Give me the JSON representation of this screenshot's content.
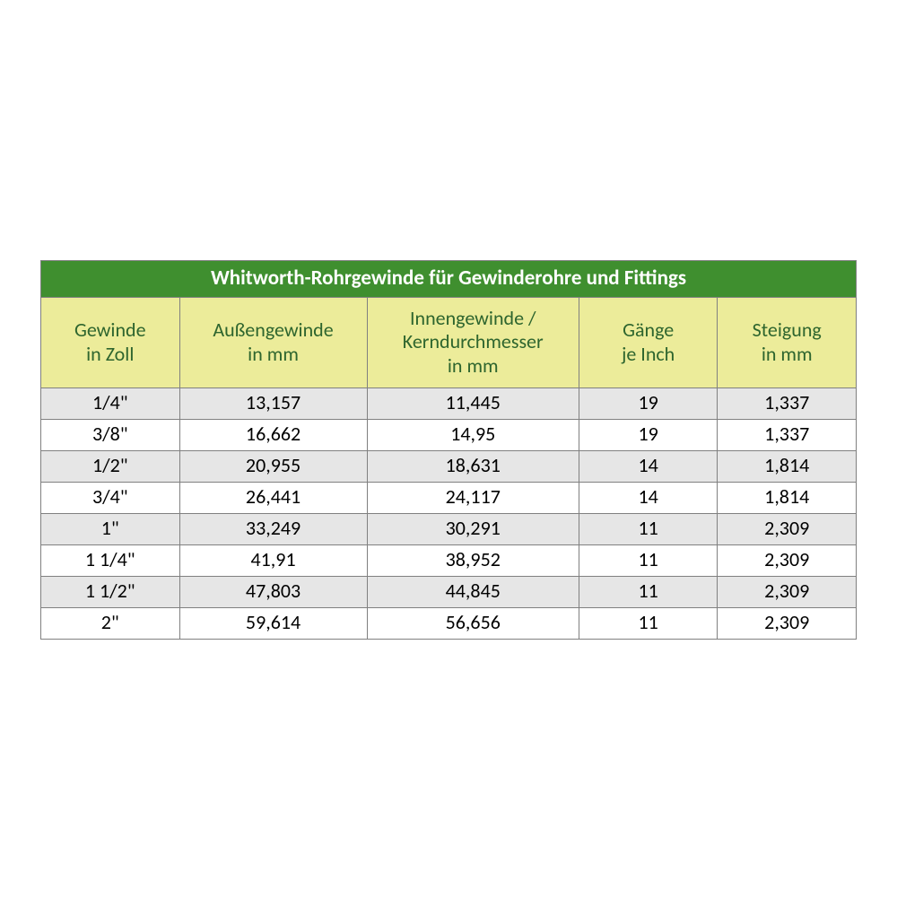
{
  "table": {
    "title": "Whitworth-Rohrgewinde für Gewinderohre und Fittings",
    "columns": [
      {
        "line1": "Gewinde",
        "line2": "in Zoll",
        "line3": "",
        "width": 17
      },
      {
        "line1": "Außengewinde",
        "line2": "in mm",
        "line3": "",
        "width": 23
      },
      {
        "line1": "Innengewinde /",
        "line2": "Kerndurchmesser",
        "line3": "in mm",
        "width": 26
      },
      {
        "line1": "Gänge",
        "line2": "je Inch",
        "line3": "",
        "width": 17
      },
      {
        "line1": "Steigung",
        "line2": "in mm",
        "line3": "",
        "width": 17
      }
    ],
    "rows": [
      [
        "1/4\"",
        "13,157",
        "11,445",
        "19",
        "1,337"
      ],
      [
        "3/8\"",
        "16,662",
        "14,95",
        "19",
        "1,337"
      ],
      [
        "1/2\"",
        "20,955",
        "18,631",
        "14",
        "1,814"
      ],
      [
        "3/4\"",
        "26,441",
        "24,117",
        "14",
        "1,814"
      ],
      [
        "1\"",
        "33,249",
        "30,291",
        "11",
        "2,309"
      ],
      [
        "1 1/4\"",
        "41,91",
        "38,952",
        "11",
        "2,309"
      ],
      [
        "1 1/2\"",
        "47,803",
        "44,845",
        "11",
        "2,309"
      ],
      [
        "2\"",
        "59,614",
        "56,656",
        "11",
        "2,309"
      ]
    ],
    "colors": {
      "title_bg": "#3f8f2f",
      "title_fg": "#ffffff",
      "header_bg": "#ecec9a",
      "header_fg": "#2e652e",
      "row_odd_bg": "#e6e6e6",
      "row_even_bg": "#ffffff",
      "border": "#808080"
    },
    "font_sizes": {
      "title": 23,
      "header": 22,
      "body": 22
    }
  }
}
